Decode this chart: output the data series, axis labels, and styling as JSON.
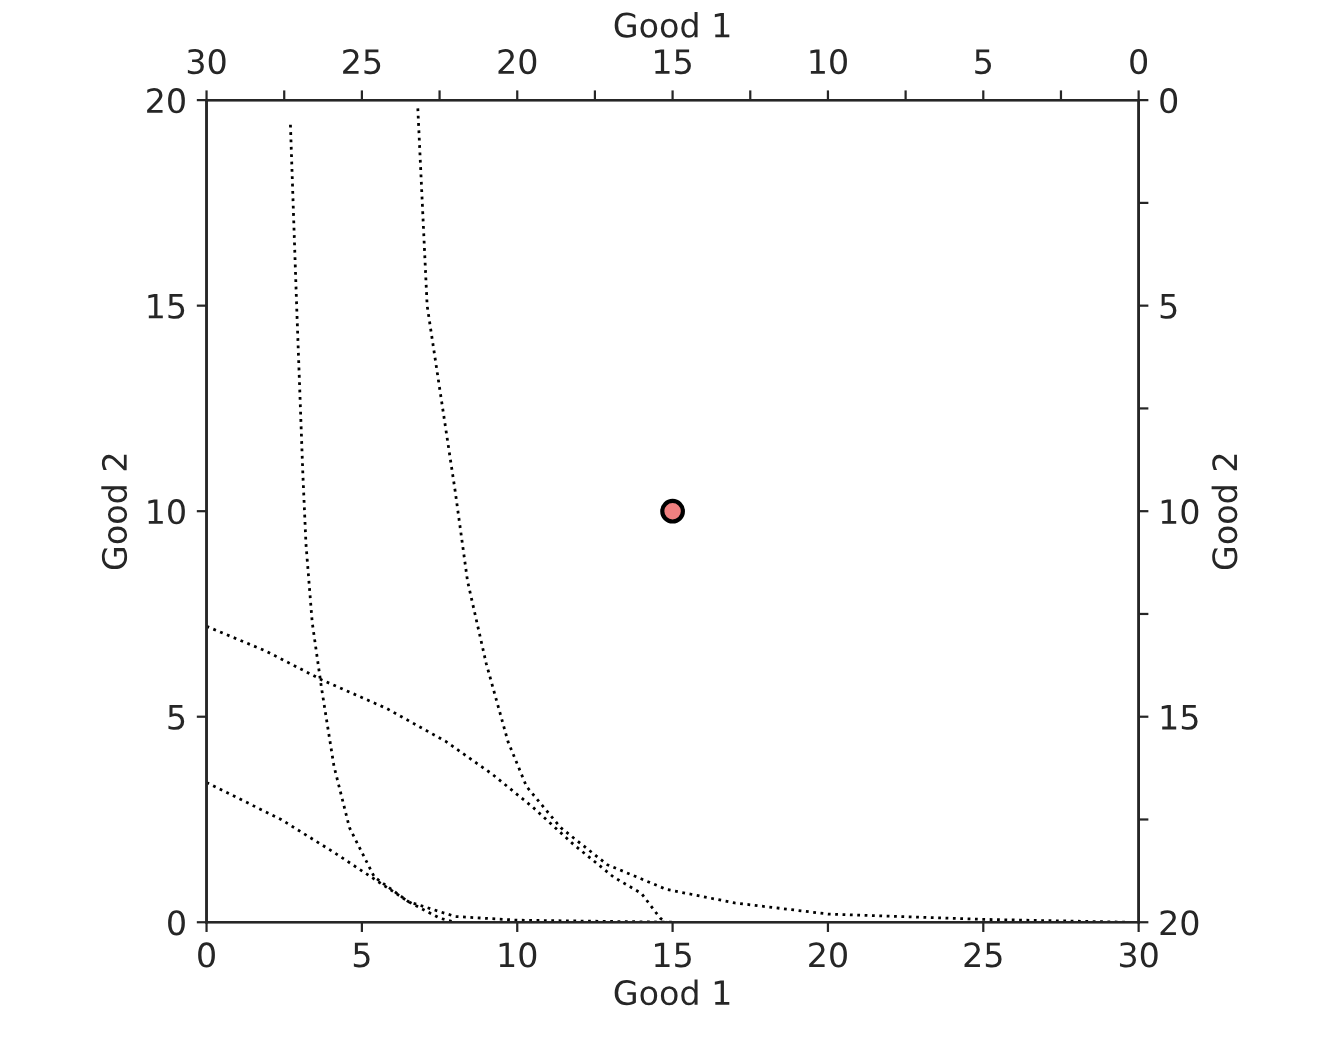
{
  "chart_data": {
    "type": "line",
    "xlabel": "Good 1",
    "ylabel": "Good 2",
    "x2label": "Good 1",
    "y2label": "Good 2",
    "xlim": [
      0,
      30
    ],
    "xticks": [
      0,
      5,
      10,
      15,
      20,
      25,
      30
    ],
    "ylim": [
      0,
      20
    ],
    "yticks": [
      0,
      5,
      10,
      15,
      20
    ],
    "x2lim": [
      30,
      0
    ],
    "x2ticks": [
      30,
      {
        "value": 27.5,
        "label": null
      },
      25,
      {
        "value": 22.5,
        "label": null
      },
      20,
      {
        "value": 17.5,
        "label": null
      },
      15,
      {
        "value": 12.5,
        "label": null
      },
      10,
      {
        "value": 7.5,
        "label": null
      },
      5,
      {
        "value": 2.5,
        "label": null
      },
      0
    ],
    "y2lim": [
      20,
      0
    ],
    "y2ticks": [
      0,
      {
        "value": 2.5,
        "label": null
      },
      5,
      {
        "value": 7.5,
        "label": null
      },
      10,
      {
        "value": 12.5,
        "label": null
      },
      15,
      {
        "value": 17.5,
        "label": null
      },
      20
    ],
    "grid": false,
    "legend": false,
    "line_style": "dotted",
    "marker": "none",
    "series": [
      {
        "color": "#000000",
        "x": [
          0,
          2.4,
          4.1,
          5.5,
          6.5,
          7.5,
          8
        ],
        "values": [
          3.4,
          2.5,
          1.7,
          1.0,
          0.5,
          0.1,
          0
        ]
      },
      {
        "color": "#000000",
        "x": [
          2.7,
          2.9,
          3.1,
          3.2,
          3.4,
          3.7,
          4.1,
          4.6,
          5.4,
          6.5,
          8.0,
          10,
          15
        ],
        "values": [
          19.4,
          15,
          10.9,
          9.2,
          7.3,
          5.7,
          3.8,
          2.3,
          1.1,
          0.5,
          0.14,
          0.05,
          0
        ]
      },
      {
        "color": "#000000",
        "x": [
          0,
          1.9,
          3.7,
          5.8,
          7.7,
          9.2,
          10.5,
          11.8,
          13.1,
          14.0,
          14.6,
          14.8
        ],
        "values": [
          7.2,
          6.6,
          5.9,
          5.2,
          4.4,
          3.6,
          2.8,
          1.9,
          1.1,
          0.7,
          0.1,
          0
        ]
      },
      {
        "color": "#000000",
        "x": [
          6.8,
          7.1,
          8.0,
          8.4,
          9.0,
          9.7,
          10.3,
          11.4,
          12.9,
          14.8,
          17,
          20,
          25,
          29.7
        ],
        "values": [
          19.8,
          15,
          10.5,
          8.3,
          6.3,
          4.4,
          3.3,
          2.3,
          1.4,
          0.8,
          0.47,
          0.2,
          0.07,
          0
        ]
      },
      {
        "type": "scatter",
        "color": "#f08080",
        "x": [
          15
        ],
        "values": [
          10
        ],
        "marker": "circle"
      }
    ]
  }
}
